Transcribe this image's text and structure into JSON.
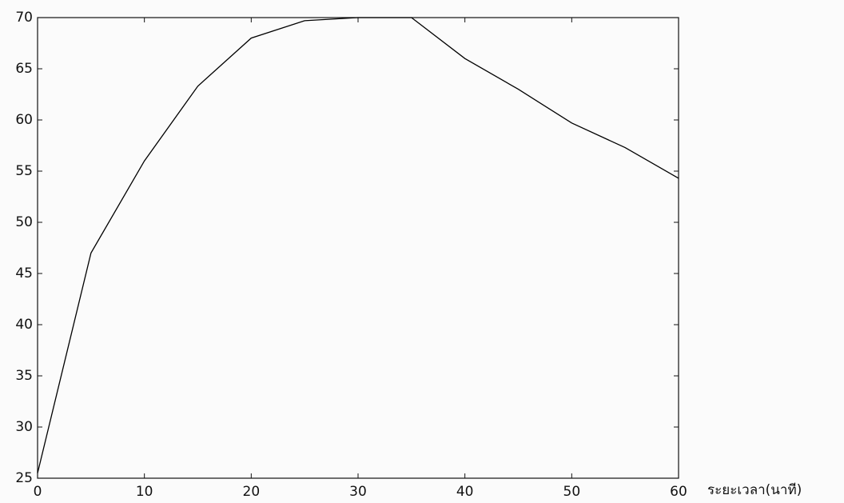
{
  "chart_data": {
    "type": "line",
    "x": [
      0,
      5,
      10,
      15,
      20,
      25,
      30,
      35,
      40,
      45,
      50,
      55,
      60
    ],
    "values": [
      25.5,
      47,
      56,
      63.3,
      68,
      69.7,
      70,
      70,
      66,
      63,
      59.7,
      57.3,
      54.3
    ],
    "color": "#000000",
    "x_label": "ระยะเวลา(นาที)",
    "xlim": [
      0,
      60
    ],
    "xticks": [
      0,
      10,
      20,
      30,
      40,
      50,
      60
    ],
    "ylim": [
      25,
      70
    ],
    "yticks": [
      25,
      30,
      35,
      40,
      45,
      50,
      55,
      60,
      65,
      70
    ],
    "grid": false
  }
}
